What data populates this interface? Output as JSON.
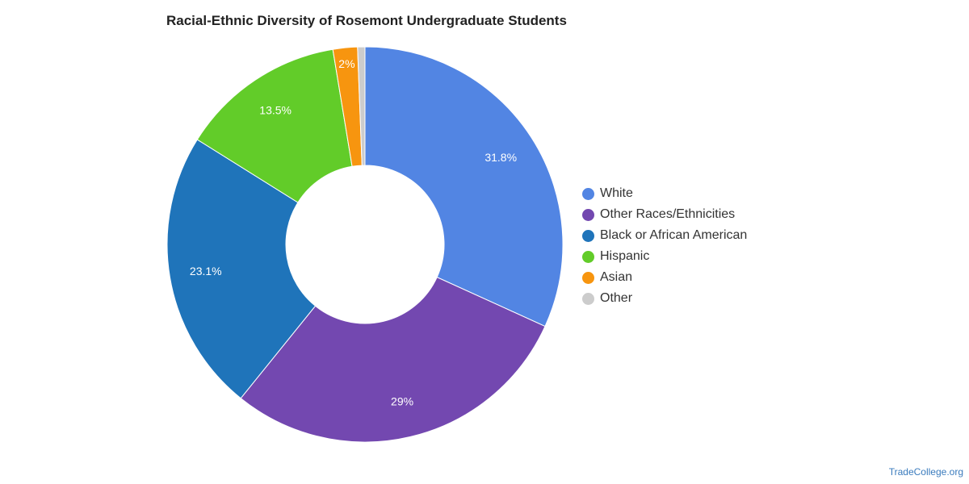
{
  "chart_data": {
    "type": "pie",
    "title": "Racial-Ethnic Diversity of Rosemont Undergraduate Students",
    "categories": [
      "White",
      "Other Races/Ethnicities",
      "Black or African American",
      "Hispanic",
      "Asian",
      "Other"
    ],
    "values": [
      31.8,
      29,
      23.1,
      13.5,
      2,
      0.6
    ],
    "data_labels": [
      "31.8%",
      "29%",
      "23.1%",
      "13.5%",
      "2%",
      ""
    ],
    "colors": [
      "#5285e3",
      "#7348b0",
      "#1f74ba",
      "#62cc29",
      "#f7950f",
      "#cccccc"
    ],
    "donut": true,
    "legend_position": "right"
  },
  "footer": {
    "source": "TradeCollege.org"
  }
}
